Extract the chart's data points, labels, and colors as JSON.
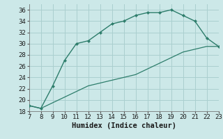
{
  "upper_x": [
    7,
    8,
    9,
    10,
    11,
    12,
    13,
    14,
    15,
    16,
    17,
    18,
    19,
    20,
    21,
    22,
    23
  ],
  "upper_y": [
    19,
    18.5,
    22.5,
    27,
    30,
    30.5,
    32,
    33.5,
    34,
    35,
    35.5,
    35.5,
    36,
    35,
    34,
    31,
    29.5
  ],
  "lower_x": [
    7,
    8,
    9,
    10,
    11,
    12,
    13,
    14,
    15,
    16,
    17,
    18,
    19,
    20,
    21,
    22,
    23
  ],
  "lower_y": [
    19,
    18.5,
    19.5,
    20.5,
    21.5,
    22.5,
    23.0,
    23.5,
    24.0,
    24.5,
    25.5,
    26.5,
    27.5,
    28.5,
    29.0,
    29.5,
    29.5
  ],
  "line_color": "#2d7d6b",
  "bg_color": "#cce8e8",
  "grid_color": "#aacfcf",
  "xlabel": "Humidex (Indice chaleur)",
  "xlim": [
    7,
    23
  ],
  "ylim": [
    18,
    37
  ],
  "xticks": [
    7,
    8,
    9,
    10,
    11,
    12,
    13,
    14,
    15,
    16,
    17,
    18,
    19,
    20,
    21,
    22,
    23
  ],
  "yticks": [
    18,
    20,
    22,
    24,
    26,
    28,
    30,
    32,
    34,
    36
  ],
  "tick_fontsize": 6.5,
  "label_fontsize": 7.5
}
